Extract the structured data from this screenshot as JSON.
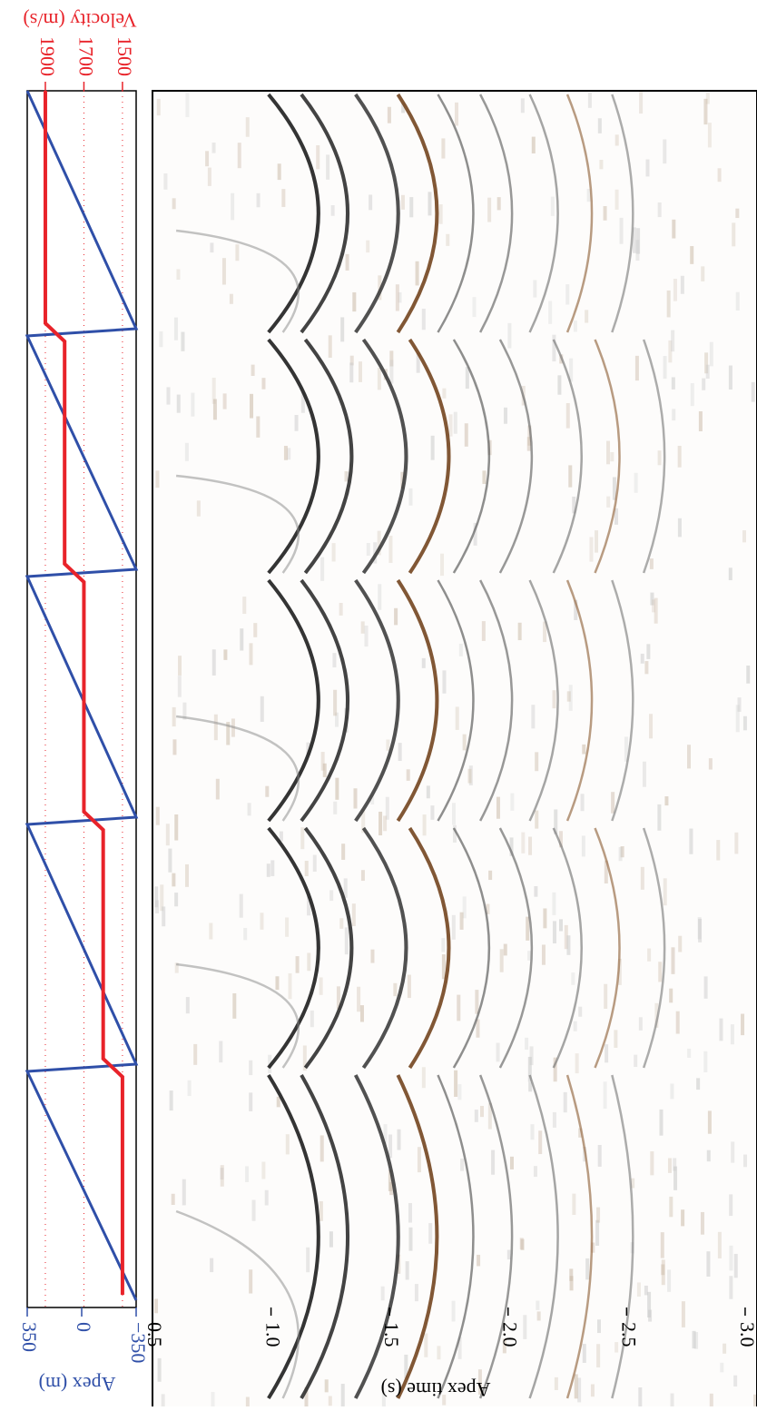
{
  "chart_data": [
    {
      "type": "line",
      "ylabel": "Apex (m)",
      "y2label": "Velocity (m/s)",
      "ylim": [
        350,
        -350
      ],
      "yticks": [
        350,
        0,
        {
          "value": -350,
          "label": "−350"
        }
      ],
      "y2lim": [
        1994,
        1429
      ],
      "y2ticks": [
        1900,
        1700,
        1500
      ],
      "grid": true,
      "series": [
        {
          "name": "Apex (m)",
          "color": "#2f4fa8",
          "values": [
            350,
            -350,
            350,
            -350,
            350,
            -350,
            350,
            -350,
            350,
            -350
          ]
        },
        {
          "name": "Velocity (m/s)",
          "color": "#e8232a",
          "axis": "y2",
          "values": [
            1900,
            1900,
            1800,
            1800,
            1700,
            1700,
            1600,
            1600,
            1500,
            1500
          ]
        }
      ]
    },
    {
      "type": "image",
      "xlabel": "Apex time (s)",
      "xlim": [
        0.5,
        3.05
      ],
      "xticks": [
        0.5,
        {
          "value": 1,
          "label": "1.0"
        },
        1.5,
        {
          "value": 2,
          "label": "2.0"
        },
        2.5,
        {
          "value": 3,
          "label": "3.0"
        }
      ]
    }
  ]
}
